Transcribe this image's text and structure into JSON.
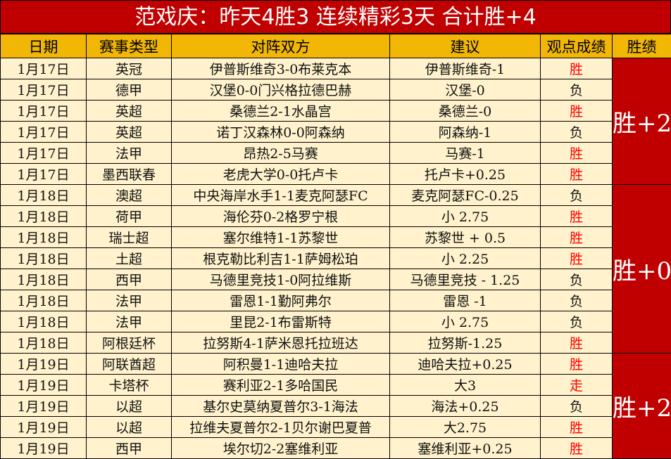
{
  "title": "范戏庆：昨天4胜3 连续精彩3天 合计胜+4",
  "headers": [
    "日期",
    "赛事类型",
    "对阵双方",
    "建议",
    "观点成绩",
    "胜绩"
  ],
  "colors": {
    "title_bg": "#c00000",
    "header_bg": "#f2b705",
    "cell_bg": "#fff2cc",
    "win_text": "#ff0000"
  },
  "rows": [
    [
      "1月17日",
      "英冠",
      "伊普斯维奇3-0布莱克本",
      "伊普斯维奇-1",
      "胜"
    ],
    [
      "1月17日",
      "德甲",
      "汉堡0-0门兴格拉德巴赫",
      "汉堡-0",
      "负"
    ],
    [
      "1月17日",
      "英超",
      "桑德兰2-1水晶宫",
      "桑德兰-0",
      "胜"
    ],
    [
      "1月17日",
      "英超",
      "诺丁汉森林0-0阿森纳",
      "阿森纳-1",
      "负"
    ],
    [
      "1月17日",
      "法甲",
      "昂热2-5马赛",
      "马赛-1",
      "胜"
    ],
    [
      "1月17日",
      "墨西联春",
      "老虎大学0-0托卢卡",
      "托卢卡+0.25",
      "胜"
    ],
    [
      "1月18日",
      "澳超",
      "中央海岸水手1-1麦克阿瑟FC",
      "麦克阿瑟FC-0.25",
      "负"
    ],
    [
      "1月18日",
      "荷甲",
      "海伦芬0-2格罗宁根",
      "小 2.75",
      "胜"
    ],
    [
      "1月18日",
      "瑞士超",
      "塞尔维特1-1苏黎世",
      "苏黎世 + 0.5",
      "胜"
    ],
    [
      "1月18日",
      "土超",
      "根克勒比利吉1-1萨姆松珀",
      "小 2.25",
      "胜"
    ],
    [
      "1月18日",
      "西甲",
      "马德里竞技1-0阿拉维斯",
      "马德里竞技 - 1.25",
      "负"
    ],
    [
      "1月18日",
      "法甲",
      "雷恩1-1勤阿弗尔",
      "雷恩 -1",
      "负"
    ],
    [
      "1月18日",
      "法甲",
      "里昆2-1布雷斯特",
      "小 2.75",
      "负"
    ],
    [
      "1月18日",
      "阿根廷杯",
      "拉努斯4-1萨米恩托拉班达",
      "拉努斯-1.25",
      "胜"
    ],
    [
      "1月19日",
      "阿联酋超",
      "阿积曼1-1迪哈夫拉",
      "迪哈夫拉+0.25",
      "胜"
    ],
    [
      "1月19日",
      "卡塔杯",
      "赛利亚2-1多哈国民",
      "大3",
      "走"
    ],
    [
      "1月19日",
      "以超",
      "基尔史莫纳夏普尔3-1海法",
      "海法+0.25",
      "负"
    ],
    [
      "1月19日",
      "以超",
      "拉维夫夏普尔2-1贝尔谢巴夏普",
      "大2.75",
      "胜"
    ],
    [
      "1月19日",
      "西甲",
      "埃尔切2-2塞维利亚",
      "塞维利亚+0.25",
      "胜"
    ]
  ],
  "summaries": [
    {
      "label": "胜+2",
      "span": 6
    },
    {
      "label": "胜+0",
      "span": 8
    },
    {
      "label": "胜+2",
      "span": 5
    }
  ]
}
